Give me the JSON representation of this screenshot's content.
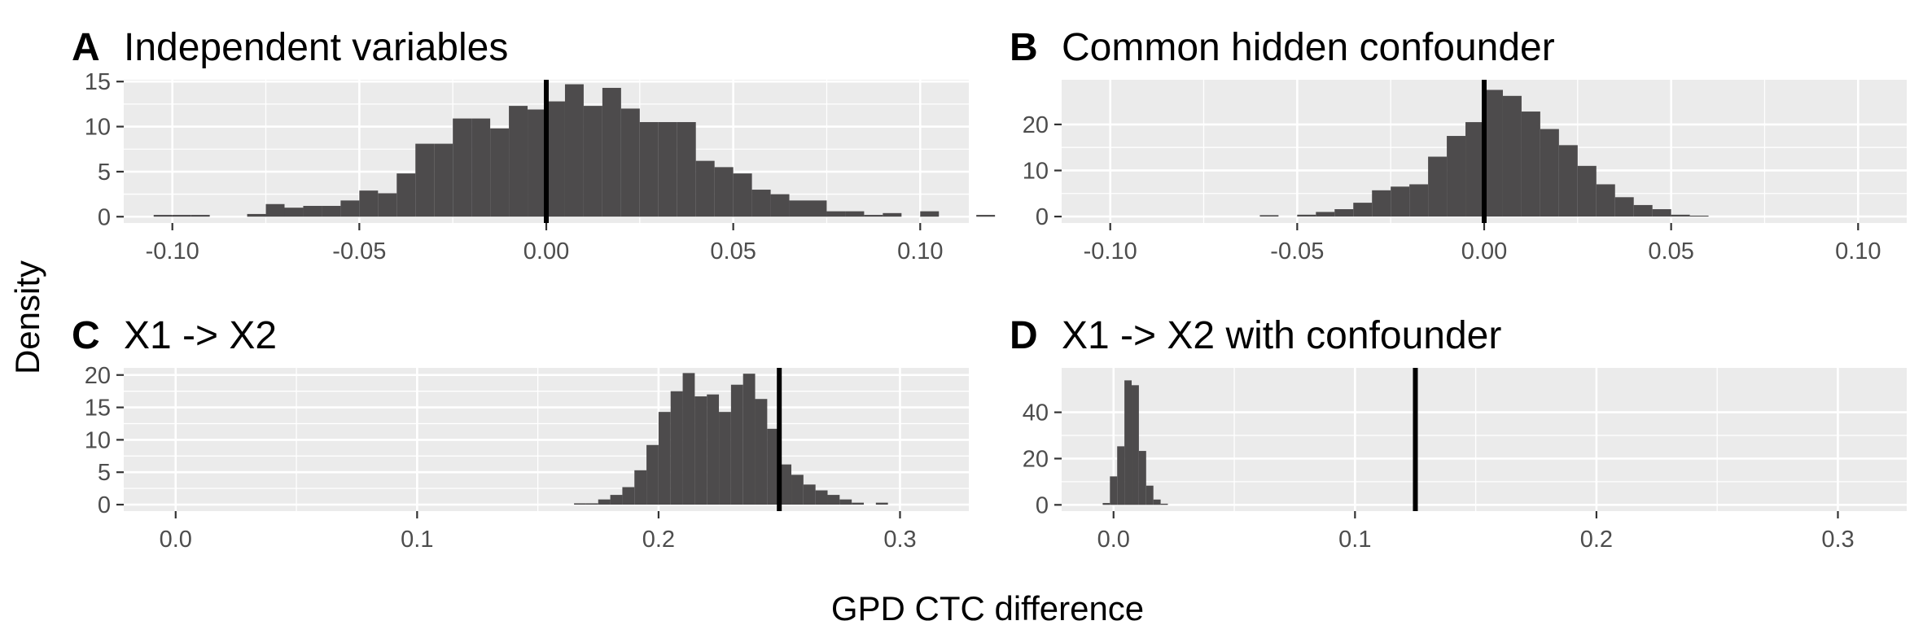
{
  "figure": {
    "ylabel": "Density",
    "xlabel": "GPD CTC difference"
  },
  "colors": {
    "panel_background": "#ebebeb",
    "grid_major": "#ffffff",
    "bar_fill": "#4d4b4c",
    "reference_line": "#000000",
    "tick_text": "#4d4d4d"
  },
  "chart_data": [
    {
      "type": "bar",
      "tag": "A",
      "title": "Independent variables",
      "xlim": [
        -0.113,
        0.113
      ],
      "ylim": [
        -0.7,
        15.2
      ],
      "xticks": [
        -0.1,
        -0.05,
        0.0,
        0.05,
        0.1
      ],
      "xtick_labels": [
        "-0.10",
        "-0.05",
        "0.00",
        "0.05",
        "0.10"
      ],
      "yticks": [
        0,
        5,
        10,
        15
      ],
      "ytick_labels": [
        "0",
        "5",
        "10",
        "15"
      ],
      "bin_width": 0.005,
      "bin_start": -0.105,
      "values": [
        0.2,
        0.2,
        0.2,
        0,
        0,
        0.3,
        1.4,
        1.0,
        1.2,
        1.2,
        1.8,
        2.9,
        2.6,
        4.8,
        8.1,
        8.1,
        10.9,
        10.9,
        9.8,
        12.3,
        11.9,
        12.8,
        14.7,
        12.3,
        14.3,
        12.0,
        10.5,
        10.5,
        10.5,
        6.2,
        5.5,
        4.8,
        3.0,
        2.5,
        1.8,
        1.8,
        0.6,
        0.6,
        0.2,
        0.4,
        0,
        0.6,
        0,
        0,
        0.2
      ],
      "reference_line": 0.0
    },
    {
      "type": "bar",
      "tag": "B",
      "title": "Common hidden confounder",
      "xlim": [
        -0.113,
        0.113
      ],
      "ylim": [
        -1.4,
        29.7
      ],
      "xticks": [
        -0.1,
        -0.05,
        0.0,
        0.05,
        0.1
      ],
      "xtick_labels": [
        "-0.10",
        "-0.05",
        "0.00",
        "0.05",
        "0.10"
      ],
      "yticks": [
        0,
        10,
        20
      ],
      "ytick_labels": [
        "0",
        "10",
        "20"
      ],
      "bin_width": 0.005,
      "bin_start": -0.06,
      "values": [
        0.3,
        0,
        0.4,
        1.0,
        1.6,
        3.0,
        5.7,
        6.5,
        7.0,
        13.0,
        17.5,
        20.5,
        27.5,
        26.2,
        22.8,
        19.0,
        15.5,
        11.0,
        7.0,
        4.2,
        2.5,
        1.6,
        0.4,
        0.2
      ],
      "reference_line": 0.0
    },
    {
      "type": "bar",
      "tag": "C",
      "title": "X1 -> X2",
      "xlim": [
        -0.0215,
        0.3285
      ],
      "ylim": [
        -1.0,
        21.1
      ],
      "xticks": [
        0.0,
        0.1,
        0.2,
        0.3
      ],
      "xtick_labels": [
        "0.0",
        "0.1",
        "0.2",
        "0.3"
      ],
      "yticks": [
        0,
        5,
        10,
        15,
        20
      ],
      "ytick_labels": [
        "0",
        "5",
        "10",
        "15",
        "20"
      ],
      "bin_width": 0.005,
      "bin_start": 0.165,
      "values": [
        0.2,
        0.2,
        0.8,
        1.5,
        2.7,
        5.3,
        9.2,
        14.3,
        17.5,
        20.3,
        16.7,
        17.0,
        14.3,
        18.5,
        20.2,
        16.3,
        11.7,
        6.2,
        4.6,
        3.1,
        2.2,
        1.5,
        0.8,
        0.3,
        0,
        0.3
      ],
      "reference_line": 0.25
    },
    {
      "type": "bar",
      "tag": "D",
      "title": "X1 -> X2 with confounder",
      "xlim": [
        -0.0215,
        0.3285
      ],
      "ylim": [
        -2.7,
        59.2
      ],
      "xticks": [
        0.0,
        0.1,
        0.2,
        0.3
      ],
      "xtick_labels": [
        "0.0",
        "0.1",
        "0.2",
        "0.3"
      ],
      "yticks": [
        0,
        20,
        40
      ],
      "ytick_labels": [
        "0",
        "20",
        "40"
      ],
      "bin_width": 0.003,
      "bin_start": -0.0045,
      "values": [
        0.8,
        12.3,
        25.3,
        53.8,
        51.7,
        23.3,
        8.3,
        2.3,
        0.5
      ],
      "reference_line": 0.125
    }
  ]
}
